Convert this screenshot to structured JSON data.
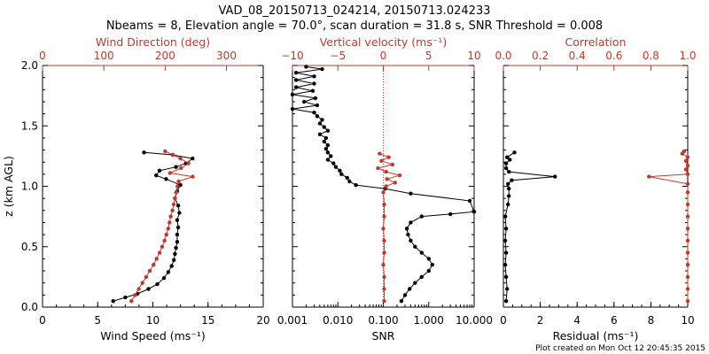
{
  "figure": {
    "title_line1": "VAD_08_20150713_024214, 20150713.024233",
    "title_line2": "Nbeams = 8, Elevation angle = 70.0°, scan duration = 31.8 s, SNR Threshold = 0.008",
    "footer": "Plot created on Mon Oct 12 20:45:35 2015",
    "colors": {
      "primary": "#000000",
      "secondary": "#c0392b"
    }
  },
  "chart_data": [
    {
      "type": "line",
      "ylabel": "z (km AGL)",
      "ylim": [
        0,
        2
      ],
      "yticks": [
        "0.0",
        "0.5",
        "1.0",
        "1.5",
        "2.0"
      ],
      "xlabel": "Wind Speed (ms⁻¹)",
      "xlim": [
        0,
        20
      ],
      "xticks": [
        "0",
        "5",
        "10",
        "15",
        "20"
      ],
      "x2label": "Wind Direction (deg)",
      "x2lim": [
        0,
        360
      ],
      "x2ticks": [
        "0",
        "100",
        "200",
        "300"
      ],
      "series": [
        {
          "color": "#000000",
          "axis": "bottom",
          "points": [
            [
              6.4,
              0.05
            ],
            [
              7.5,
              0.08
            ],
            [
              8.6,
              0.11
            ],
            [
              9.6,
              0.15
            ],
            [
              10.4,
              0.19
            ],
            [
              11.0,
              0.24
            ],
            [
              11.4,
              0.29
            ],
            [
              11.7,
              0.34
            ],
            [
              11.9,
              0.39
            ],
            [
              12.0,
              0.44
            ],
            [
              12.1,
              0.49
            ],
            [
              12.2,
              0.54
            ],
            [
              12.2,
              0.6
            ],
            [
              12.3,
              0.66
            ],
            [
              12.2,
              0.72
            ],
            [
              12.4,
              0.78
            ],
            [
              12.3,
              0.84
            ],
            [
              12.0,
              0.9
            ],
            [
              12.2,
              0.96
            ],
            [
              12.5,
              1.01
            ],
            [
              11.2,
              1.06
            ],
            [
              10.3,
              1.09
            ],
            [
              10.6,
              1.13
            ],
            [
              12.1,
              1.16
            ],
            [
              13.0,
              1.19
            ],
            [
              13.6,
              1.23
            ],
            [
              11.8,
              1.26
            ],
            [
              9.2,
              1.28
            ]
          ]
        },
        {
          "color": "#c0392b",
          "axis": "top",
          "points": [
            [
              145,
              0.05
            ],
            [
              151,
              0.1
            ],
            [
              157,
              0.15
            ],
            [
              163,
              0.2
            ],
            [
              169,
              0.25
            ],
            [
              175,
              0.3
            ],
            [
              181,
              0.35
            ],
            [
              186,
              0.4
            ],
            [
              191,
              0.45
            ],
            [
              195,
              0.5
            ],
            [
              199,
              0.55
            ],
            [
              202,
              0.6
            ],
            [
              205,
              0.65
            ],
            [
              207,
              0.7
            ],
            [
              209,
              0.75
            ],
            [
              212,
              0.8
            ],
            [
              214,
              0.85
            ],
            [
              216,
              0.9
            ],
            [
              218,
              0.95
            ],
            [
              220,
              1.0
            ],
            [
              222,
              1.04
            ],
            [
              245,
              1.08
            ],
            [
              208,
              1.11
            ],
            [
              226,
              1.15
            ],
            [
              238,
              1.19
            ],
            [
              225,
              1.23
            ],
            [
              213,
              1.26
            ],
            [
              200,
              1.29
            ]
          ]
        }
      ]
    },
    {
      "type": "line",
      "xlabel": "SNR",
      "xscale": "log",
      "xlim": [
        0.001,
        10
      ],
      "xticks": [
        "0.001",
        "0.010",
        "0.100",
        "1.000",
        "10.000"
      ],
      "x2label": "Vertical velocity (ms⁻¹)",
      "x2lim": [
        -10,
        10
      ],
      "x2ticks": [
        "−10",
        "−5",
        "0",
        "5",
        "10"
      ],
      "ylim": [
        0,
        2
      ],
      "series": [
        {
          "color": "#000000",
          "axis": "bottom",
          "points": [
            [
              0.25,
              0.05
            ],
            [
              0.3,
              0.1
            ],
            [
              0.38,
              0.15
            ],
            [
              0.5,
              0.2
            ],
            [
              0.7,
              0.25
            ],
            [
              1.0,
              0.3
            ],
            [
              1.2,
              0.35
            ],
            [
              1.0,
              0.4
            ],
            [
              0.7,
              0.45
            ],
            [
              0.5,
              0.5
            ],
            [
              0.4,
              0.55
            ],
            [
              0.35,
              0.6
            ],
            [
              0.33,
              0.65
            ],
            [
              0.4,
              0.7
            ],
            [
              0.7,
              0.75
            ],
            [
              3,
              0.77
            ],
            [
              10,
              0.79
            ],
            [
              8,
              0.88
            ],
            [
              0.4,
              0.94
            ],
            [
              0.11,
              0.98
            ],
            [
              0.025,
              1.01
            ],
            [
              0.018,
              1.04
            ],
            [
              0.016,
              1.07
            ],
            [
              0.012,
              1.1
            ],
            [
              0.011,
              1.13
            ],
            [
              0.009,
              1.16
            ],
            [
              0.008,
              1.19
            ],
            [
              0.006,
              1.22
            ],
            [
              0.007,
              1.25
            ],
            [
              0.006,
              1.28
            ],
            [
              0.0055,
              1.31
            ],
            [
              0.006,
              1.34
            ],
            [
              0.005,
              1.37
            ],
            [
              0.0055,
              1.4
            ],
            [
              0.004,
              1.43
            ],
            [
              0.006,
              1.46
            ],
            [
              0.005,
              1.49
            ],
            [
              0.004,
              1.52
            ],
            [
              0.0045,
              1.55
            ],
            [
              0.0035,
              1.58
            ],
            [
              0.003,
              1.61
            ],
            [
              0.001,
              1.64
            ],
            [
              0.0035,
              1.67
            ],
            [
              0.0018,
              1.7
            ],
            [
              0.0032,
              1.73
            ],
            [
              0.001,
              1.76
            ],
            [
              0.0028,
              1.79
            ],
            [
              0.0012,
              1.82
            ],
            [
              0.003,
              1.85
            ],
            [
              0.0012,
              1.88
            ],
            [
              0.003,
              1.91
            ],
            [
              0.0012,
              1.94
            ],
            [
              0.0045,
              1.97
            ],
            [
              0.002,
              1.99
            ]
          ]
        },
        {
          "color": "#c0392b",
          "axis": "top",
          "points": [
            [
              0.1,
              0.05
            ],
            [
              0.1,
              0.15
            ],
            [
              0.1,
              0.25
            ],
            [
              0.0,
              0.35
            ],
            [
              0.1,
              0.45
            ],
            [
              0.1,
              0.55
            ],
            [
              0.0,
              0.65
            ],
            [
              0.1,
              0.75
            ],
            [
              0.1,
              0.85
            ],
            [
              0.0,
              0.95
            ],
            [
              0.3,
              1.0
            ],
            [
              1.3,
              1.03
            ],
            [
              0.4,
              1.06
            ],
            [
              1.8,
              1.09
            ],
            [
              0.3,
              1.12
            ],
            [
              -0.6,
              1.15
            ],
            [
              1.0,
              1.18
            ],
            [
              -0.2,
              1.21
            ],
            [
              0.6,
              1.24
            ],
            [
              -0.4,
              1.27
            ]
          ]
        }
      ]
    },
    {
      "type": "line",
      "xlabel": "Residual (ms⁻¹)",
      "xlim": [
        0,
        10
      ],
      "xticks": [
        "0",
        "2",
        "4",
        "6",
        "8",
        "10"
      ],
      "x2label": "Correlation",
      "x2lim": [
        0,
        1
      ],
      "x2ticks": [
        "0.0",
        "0.2",
        "0.4",
        "0.6",
        "0.8",
        "1.0"
      ],
      "ylim": [
        0,
        2
      ],
      "series": [
        {
          "color": "#000000",
          "axis": "bottom",
          "points": [
            [
              0.15,
              0.05
            ],
            [
              0.2,
              0.15
            ],
            [
              0.15,
              0.25
            ],
            [
              0.1,
              0.35
            ],
            [
              0.15,
              0.45
            ],
            [
              0.1,
              0.55
            ],
            [
              0.15,
              0.65
            ],
            [
              0.1,
              0.75
            ],
            [
              0.25,
              0.85
            ],
            [
              0.3,
              0.92
            ],
            [
              0.3,
              0.98
            ],
            [
              0.25,
              1.02
            ],
            [
              0.45,
              1.05
            ],
            [
              2.8,
              1.08
            ],
            [
              0.3,
              1.12
            ],
            [
              0.15,
              1.15
            ],
            [
              0.15,
              1.19
            ],
            [
              0.35,
              1.22
            ],
            [
              0.2,
              1.24
            ],
            [
              0.6,
              1.28
            ]
          ]
        },
        {
          "color": "#c0392b",
          "axis": "top",
          "points": [
            [
              1.0,
              0.05
            ],
            [
              1.0,
              0.15
            ],
            [
              1.0,
              0.25
            ],
            [
              1.0,
              0.35
            ],
            [
              1.0,
              0.45
            ],
            [
              1.0,
              0.55
            ],
            [
              1.0,
              0.65
            ],
            [
              1.0,
              0.75
            ],
            [
              1.0,
              0.85
            ],
            [
              1.0,
              0.95
            ],
            [
              1.0,
              1.02
            ],
            [
              0.79,
              1.08
            ],
            [
              1.0,
              1.1
            ],
            [
              0.99,
              1.14
            ],
            [
              1.0,
              1.17
            ],
            [
              0.99,
              1.21
            ],
            [
              1.0,
              1.24
            ],
            [
              0.97,
              1.27
            ],
            [
              0.98,
              1.29
            ]
          ]
        }
      ]
    }
  ]
}
